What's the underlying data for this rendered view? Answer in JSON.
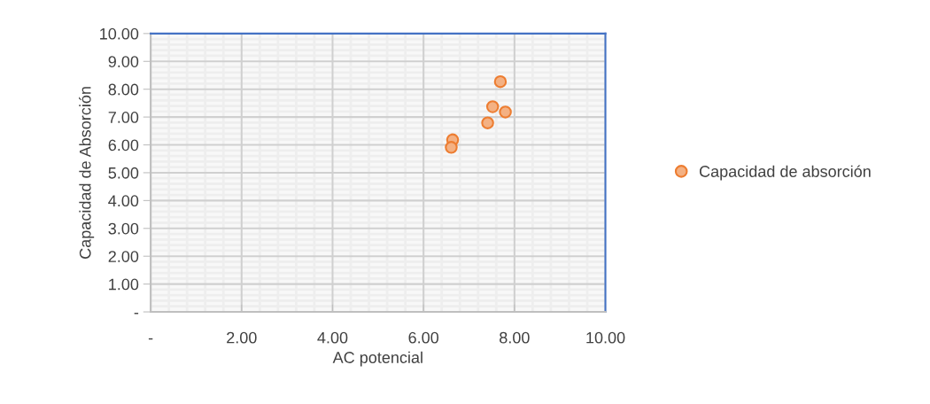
{
  "chart_data": {
    "type": "scatter",
    "xlabel": "AC potencial",
    "ylabel": "Capacidad de Absorción",
    "series": [
      {
        "name": "Capacidad de absorción",
        "color": "#f4b183",
        "x": [
          7.69,
          7.52,
          7.8,
          7.41,
          6.64,
          6.61
        ],
        "values": [
          8.27,
          7.37,
          7.18,
          6.79,
          6.18,
          5.91
        ]
      }
    ],
    "xlim": [
      0,
      10
    ],
    "ylim": [
      0,
      10
    ],
    "xticks": [
      {
        "value": 0,
        "label": "-"
      },
      {
        "value": 2,
        "label": "2.00"
      },
      {
        "value": 4,
        "label": "4.00"
      },
      {
        "value": 6,
        "label": "6.00"
      },
      {
        "value": 8,
        "label": "8.00"
      },
      {
        "value": 10,
        "label": "10.00"
      }
    ],
    "yticks": [
      {
        "value": 0,
        "label": "-"
      },
      {
        "value": 1,
        "label": "1.00"
      },
      {
        "value": 2,
        "label": "2.00"
      },
      {
        "value": 3,
        "label": "3.00"
      },
      {
        "value": 4,
        "label": "4.00"
      },
      {
        "value": 5,
        "label": "5.00"
      },
      {
        "value": 6,
        "label": "6.00"
      },
      {
        "value": 7,
        "label": "7.00"
      },
      {
        "value": 8,
        "label": "8.00"
      },
      {
        "value": 9,
        "label": "9.00"
      },
      {
        "value": 10,
        "label": "10.00"
      }
    ],
    "grid": true,
    "legend": "right",
    "marker": "circle"
  }
}
